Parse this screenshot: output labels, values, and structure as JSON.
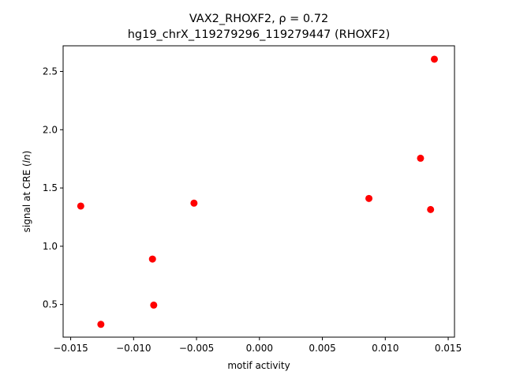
{
  "chart_data": {
    "type": "scatter",
    "title_line1": "VAX2_RHOXF2, ρ = 0.72",
    "title_line2": "hg19_chrX_119279296_119279447 (RHOXF2)",
    "xlabel": "motif activity",
    "ylabel": "signal at CRE (ln)",
    "xlim": [
      -0.0156,
      0.0155
    ],
    "ylim": [
      0.22,
      2.72
    ],
    "xticks": [
      -0.015,
      -0.01,
      -0.005,
      0.0,
      0.005,
      0.01,
      0.015
    ],
    "xtick_labels": [
      "−0.015",
      "−0.010",
      "−0.005",
      "0.000",
      "0.005",
      "0.010",
      "0.015"
    ],
    "yticks": [
      0.5,
      1.0,
      1.5,
      2.0,
      2.5
    ],
    "ytick_labels": [
      "0.5",
      "1.0",
      "1.5",
      "2.0",
      "2.5"
    ],
    "grid": false,
    "marker_color": "#ff0000",
    "points": [
      {
        "x": -0.0142,
        "y": 1.345
      },
      {
        "x": -0.0126,
        "y": 0.33
      },
      {
        "x": -0.0085,
        "y": 0.89
      },
      {
        "x": -0.0084,
        "y": 0.495
      },
      {
        "x": -0.0052,
        "y": 1.37
      },
      {
        "x": 0.0087,
        "y": 1.41
      },
      {
        "x": 0.0128,
        "y": 1.755
      },
      {
        "x": 0.0136,
        "y": 1.315
      },
      {
        "x": 0.0139,
        "y": 2.605
      }
    ]
  }
}
